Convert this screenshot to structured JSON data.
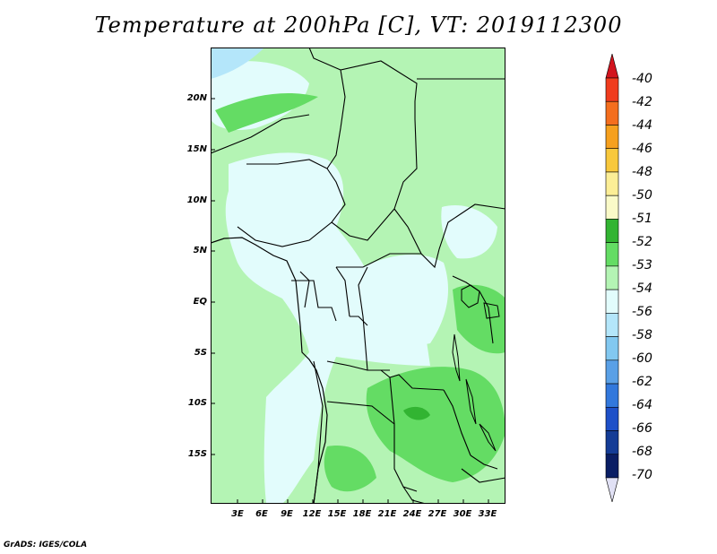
{
  "title": "Temperature at 200hPa [C], VT: 2019112300",
  "credit": "GrADS: IGES/COLA",
  "map": {
    "lat_labels": [
      "20N",
      "15N",
      "10N",
      "5N",
      "EQ",
      "5S",
      "10S",
      "15S"
    ],
    "lon_labels": [
      "3E",
      "6E",
      "9E",
      "12E",
      "15E",
      "18E",
      "21E",
      "24E",
      "27E",
      "30E",
      "33E"
    ]
  },
  "colorbar": {
    "labels": [
      "-40",
      "-42",
      "-44",
      "-46",
      "-48",
      "-50",
      "-51",
      "-52",
      "-53",
      "-54",
      "-56",
      "-58",
      "-60",
      "-62",
      "-64",
      "-66",
      "-68",
      "-70"
    ],
    "colors": [
      "#d2141e",
      "#f03c1e",
      "#f46e1e",
      "#f6a01e",
      "#f8c83c",
      "#fcee96",
      "#fafac8",
      "#32b432",
      "#64dc64",
      "#b4f4b4",
      "#e2fcfc",
      "#b4e6fa",
      "#82c8f0",
      "#5aa0e6",
      "#3278dc",
      "#1e50c8",
      "#143c96",
      "#0a1e64",
      "#e1e1f5"
    ]
  }
}
